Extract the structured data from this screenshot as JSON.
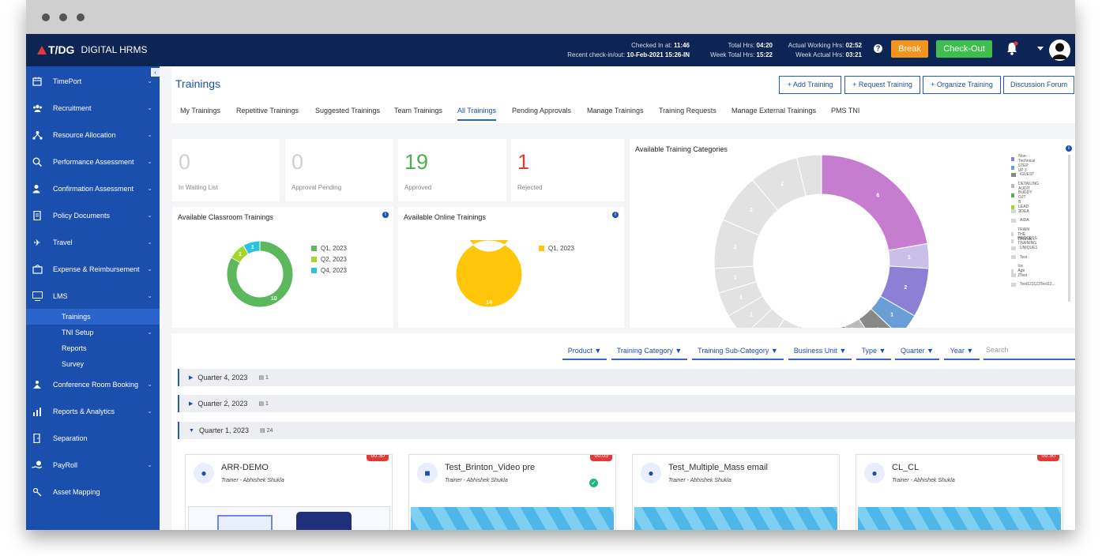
{
  "app": {
    "logo_brand": "T/DG",
    "logo_product": "DIGITAL HRMS"
  },
  "topbar": {
    "checked_in_label": "Checked In at:",
    "checked_in_value": "11:46",
    "recent_label": "Recent check-in/out:",
    "recent_value": "10-Feb-2021 15:26-IN",
    "total_hrs_label": "Total Hrs:",
    "total_hrs_value": "04:20",
    "week_total_label": "Week Total Hrs:",
    "week_total_value": "15:22",
    "actual_working_label": "Actual Working Hrs:",
    "actual_working_value": "02:52",
    "week_actual_label": "Week Actual Hrs:",
    "week_actual_value": "03:21",
    "break_label": "Break",
    "checkout_label": "Check-Out",
    "colors": {
      "bar": "#0d2554",
      "break": "#f5941d",
      "checkout": "#3cbf4e"
    }
  },
  "sidebar": {
    "items": [
      {
        "label": "TimePort",
        "icon": "calendar-icon"
      },
      {
        "label": "Recruitment",
        "icon": "people-icon"
      },
      {
        "label": "Resource Allocation",
        "icon": "network-icon"
      },
      {
        "label": "Performance Assessment",
        "icon": "search-chart-icon"
      },
      {
        "label": "Confirmation Assessment",
        "icon": "user-check-icon"
      },
      {
        "label": "Policy Documents",
        "icon": "document-icon"
      },
      {
        "label": "Travel",
        "icon": "plane-icon"
      },
      {
        "label": "Expense & Reimbursement",
        "icon": "wallet-icon"
      },
      {
        "label": "LMS",
        "icon": "lms-icon"
      },
      {
        "label": "Conference Room Booking",
        "icon": "presenter-icon"
      },
      {
        "label": "Reports & Analytics",
        "icon": "analytics-icon"
      },
      {
        "label": "Separation",
        "icon": "separation-icon"
      },
      {
        "label": "PayRoll",
        "icon": "payroll-icon"
      },
      {
        "label": "Asset Mapping",
        "icon": "asset-icon"
      }
    ],
    "lms_sub": [
      "Trainings",
      "TNI Setup",
      "Reports",
      "Survey"
    ]
  },
  "page": {
    "title": "Trainings",
    "buttons": [
      "Add Training",
      "Request Training",
      "Organize Training",
      "Discussion Forum"
    ],
    "tabs": [
      "My Trainings",
      "Repetitive Trainings",
      "Suggested Trainings",
      "Team Trainings",
      "All Trainings",
      "Pending Approvals",
      "Manage Trainings",
      "Training Requests",
      "Manage External Trainings",
      "PMS TNI"
    ],
    "active_tab": "All Trainings"
  },
  "stats": [
    {
      "value": "0",
      "label": "In Waiting List",
      "color": "#d0d0d0"
    },
    {
      "value": "0",
      "label": "Approval Pending",
      "color": "#d0d0d0"
    },
    {
      "value": "19",
      "label": "Approved",
      "color": "#4caf50"
    },
    {
      "value": "1",
      "label": "Rejected",
      "color": "#e53935"
    }
  ],
  "classroom": {
    "title": "Available Classroom Trainings",
    "legend": [
      {
        "label": "Q1, 2023",
        "color": "#5cb85c"
      },
      {
        "label": "Q2, 2023",
        "color": "#a4d62c"
      },
      {
        "label": "Q4, 2023",
        "color": "#29c3dd"
      }
    ],
    "slices": [
      {
        "value": 10,
        "label": "10",
        "color": "#5cb85c"
      },
      {
        "value": 1,
        "label": "1",
        "color": "#a4d62c"
      },
      {
        "value": 1,
        "label": "1",
        "color": "#29c3dd"
      }
    ]
  },
  "online": {
    "title": "Available Online Trainings",
    "legend": [
      {
        "label": "Q1, 2023",
        "color": "#ffc60a"
      }
    ],
    "slices": [
      {
        "value": 14,
        "label": "14",
        "color": "#ffc60a"
      }
    ]
  },
  "categories": {
    "title": "Available Training Categories",
    "legend": [
      {
        "label": "Non-Technical",
        "color": "#8e7fd6"
      },
      {
        "label": "STEP UP 3",
        "color": "#6a9ed6"
      },
      {
        "label": "iGUEST",
        "color": "#888888"
      },
      {
        "label": "DETAILING AUDIT",
        "color": "#bbbbbb"
      },
      {
        "label": "BUDDY OJT",
        "color": "#4caf50"
      },
      {
        "label": "B LEAD 2",
        "color": "#a4d62c"
      },
      {
        "label": "IDEA",
        "color": "#d6d6d6"
      },
      {
        "label": "AIDA",
        "color": "#d6d6d6"
      },
      {
        "label": "TRAIN THE TRAINE...",
        "color": "#d6d6d6"
      },
      {
        "label": "PROCESS TRAINING",
        "color": "#d6d6d6"
      },
      {
        "label": "UNIQUE1",
        "color": "#d6d6d6"
      },
      {
        "label": "Test",
        "color": "#d6d6d6"
      },
      {
        "label": "Ice Age 2",
        "color": "#d6d6d6"
      },
      {
        "label": "Test",
        "color": "#d6d6d6"
      },
      {
        "label": "Test123123Test12...",
        "color": "#d6d6d6"
      }
    ],
    "slices": [
      {
        "value": 6,
        "label": "6",
        "color": "#c77dcf"
      },
      {
        "value": 1,
        "label": "1",
        "color": "#c9bfe8"
      },
      {
        "value": 2,
        "label": "2",
        "color": "#8e7fd6"
      },
      {
        "value": 1,
        "label": "1",
        "color": "#6a9ed6"
      },
      {
        "value": 1,
        "label": "1",
        "color": "#888888"
      },
      {
        "value": 1,
        "label": "1",
        "color": "#bbbbbb"
      },
      {
        "value": 1,
        "label": "1",
        "color": "#4caf50"
      },
      {
        "value": 1,
        "label": "1",
        "color": "#a4d62c"
      },
      {
        "value": 1,
        "label": "1",
        "color": "#e2e2e2"
      },
      {
        "value": 1,
        "label": "1",
        "color": "#e2e2e2"
      },
      {
        "value": 1,
        "label": "1",
        "color": "#e2e2e2"
      },
      {
        "value": 1,
        "label": "1",
        "color": "#e2e2e2"
      },
      {
        "value": 1,
        "label": "1",
        "color": "#e2e2e2"
      },
      {
        "value": 1,
        "label": "1",
        "color": "#e2e2e2"
      },
      {
        "value": 2,
        "label": "2",
        "color": "#e2e2e2"
      },
      {
        "value": 2,
        "label": "2",
        "color": "#e2e2e2"
      },
      {
        "value": 2,
        "label": "2",
        "color": "#e2e2e2"
      },
      {
        "value": 1,
        "label": "",
        "color": "#e2e2e2"
      }
    ]
  },
  "filters": [
    "Product",
    "Training Category",
    "Training Sub-Category",
    "Business Unit",
    "Type",
    "Quarter",
    "Year"
  ],
  "search_placeholder": "Search",
  "quarters": [
    {
      "label": "Quarter 4, 2023",
      "count": "1",
      "expanded": false
    },
    {
      "label": "Quarter 2, 2023",
      "count": "1",
      "expanded": false
    },
    {
      "label": "Quarter 1, 2023",
      "count": "24",
      "expanded": true
    }
  ],
  "trainings": [
    {
      "name": "ARR-DEMO",
      "trainer": "Trainer - Abhishek Shukla",
      "duration": "00:30",
      "icon": "user-icon"
    },
    {
      "name": "Test_Brinton_Video pre",
      "trainer": "Trainer - Abhishek Shukla",
      "duration": "00:05",
      "icon": "video-icon"
    },
    {
      "name": "Test_Multiple_Mass email",
      "trainer": "Trainer - Abhishek Shukla",
      "duration": "",
      "icon": "user-icon"
    },
    {
      "name": "CL_CL",
      "trainer": "Trainer - Abhishek Shukla",
      "duration": "00:30",
      "icon": "user-icon"
    }
  ]
}
